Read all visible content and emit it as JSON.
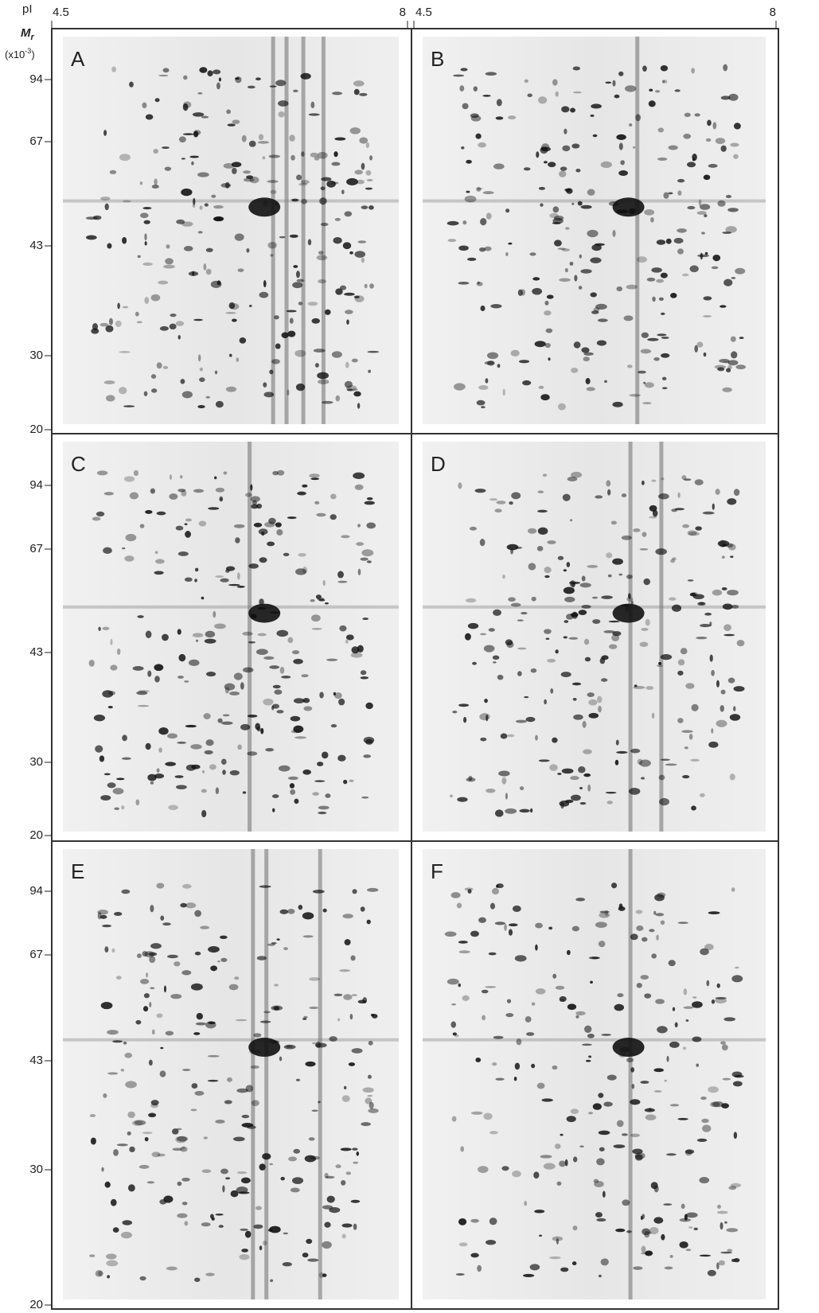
{
  "header": {
    "pi_label": "pI",
    "pi_ticks_left": [
      "4.5",
      "8"
    ],
    "pi_ticks_right": [
      "4.5",
      "8"
    ],
    "mr_label": "M",
    "mr_subscript": "r",
    "mr_unit_prefix": "(x10",
    "mr_unit_exponent": "-3",
    "mr_unit_suffix": ")"
  },
  "rows": [
    {
      "mw_ticks": [
        "94",
        "67",
        "43",
        "30",
        "20"
      ],
      "panels": [
        "A",
        "B"
      ]
    },
    {
      "mw_ticks": [
        "94",
        "67",
        "43",
        "30",
        "20"
      ],
      "panels": [
        "C",
        "D"
      ]
    },
    {
      "mw_ticks": [
        "94",
        "67",
        "43",
        "30",
        "20"
      ],
      "panels": [
        "E",
        "F"
      ]
    }
  ]
}
